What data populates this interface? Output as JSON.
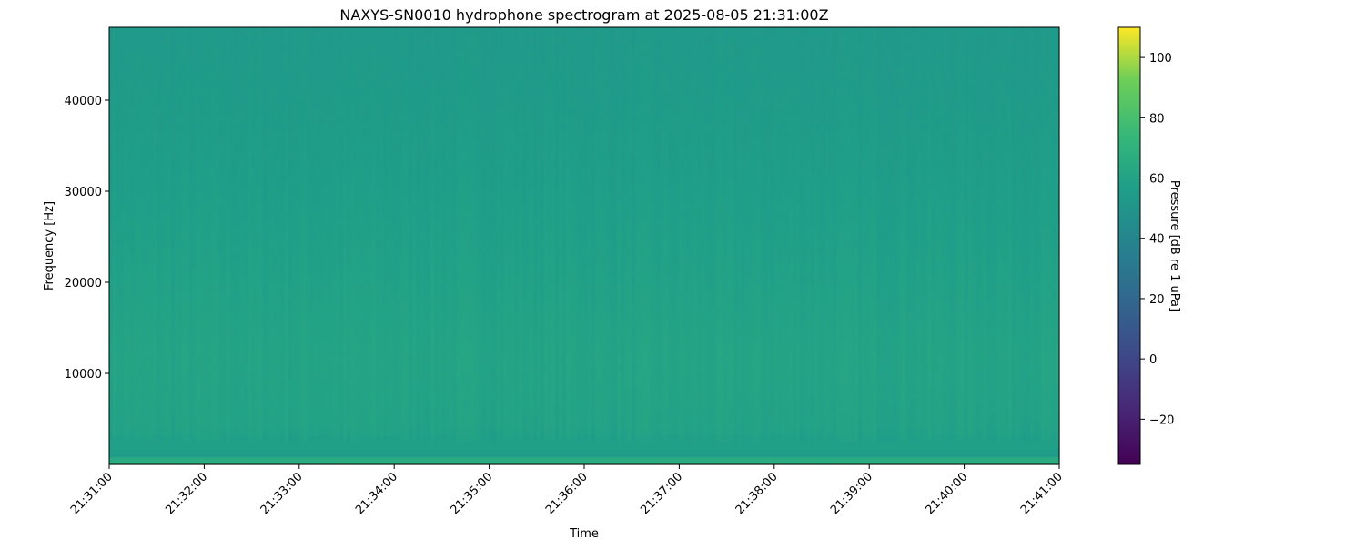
{
  "chart_data": {
    "type": "heatmap",
    "title": "NAXYS-SN0010 hydrophone spectrogram at 2025-08-05 21:31:00Z",
    "xlabel": "Time",
    "ylabel": "Frequency [Hz]",
    "x_ticks": [
      "21:31:00",
      "21:32:00",
      "21:33:00",
      "21:34:00",
      "21:35:00",
      "21:36:00",
      "21:37:00",
      "21:38:00",
      "21:39:00",
      "21:40:00",
      "21:41:00"
    ],
    "xlim": [
      "21:31:00",
      "21:41:00"
    ],
    "y_ticks": [
      10000,
      20000,
      30000,
      40000
    ],
    "ylim": [
      0,
      48000
    ],
    "colormap": "viridis",
    "colorbar": {
      "label": "Pressure [dB re 1 uPa]",
      "ticks": [
        -20,
        0,
        20,
        40,
        60,
        80,
        100
      ],
      "range": [
        -35,
        110
      ]
    },
    "levels_by_frequency": [
      {
        "freq_hz": 0,
        "db": 68
      },
      {
        "freq_hz": 800,
        "db": 66
      },
      {
        "freq_hz": 1500,
        "db": 55
      },
      {
        "freq_hz": 4000,
        "db": 59
      },
      {
        "freq_hz": 12000,
        "db": 60
      },
      {
        "freq_hz": 25000,
        "db": 57
      },
      {
        "freq_hz": 40000,
        "db": 54
      },
      {
        "freq_hz": 48000,
        "db": 53
      }
    ],
    "grid": false
  }
}
